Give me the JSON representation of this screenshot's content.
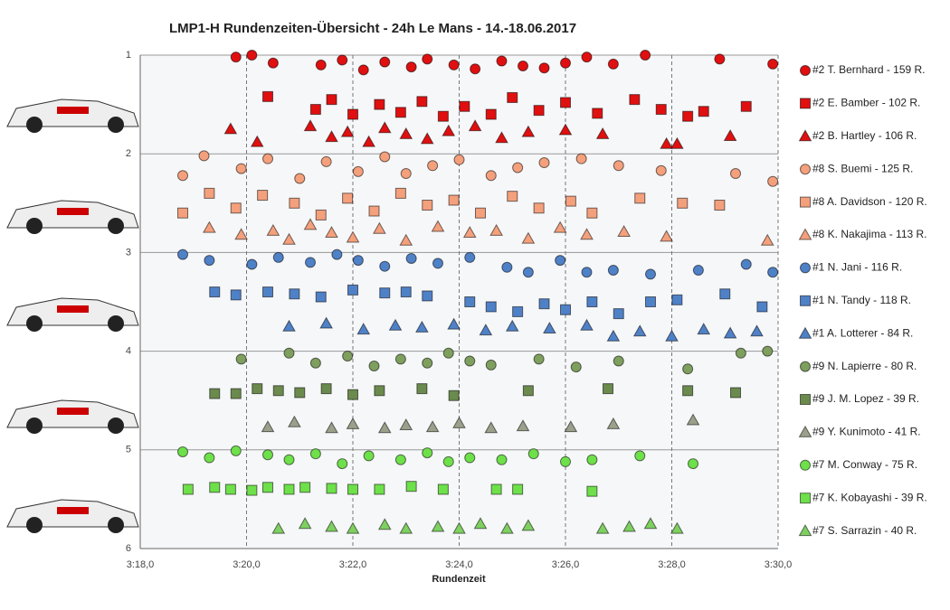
{
  "chart_data": {
    "type": "scatter",
    "title": "LMP1-H  Rundenzeiten-Übersicht  - 24h Le Mans  - 14.-18.06.2017",
    "x_label": "Rundenzeit",
    "xlim": [
      198,
      210
    ],
    "xticks": [
      {
        "value": 198,
        "label": "3:18,0"
      },
      {
        "value": 200,
        "label": "3:20,0"
      },
      {
        "value": 202,
        "label": "3:22,0"
      },
      {
        "value": 204,
        "label": "3:24,0"
      },
      {
        "value": 206,
        "label": "3:26,0"
      },
      {
        "value": 208,
        "label": "3:28,0"
      },
      {
        "value": 210,
        "label": "3:30,0"
      }
    ],
    "ylim": [
      6,
      1
    ],
    "yticks": [
      1,
      2,
      3,
      4,
      5,
      6
    ],
    "grid": true,
    "legend": "right",
    "series": [
      {
        "name": "#2 T. Bernhard - 159 R.",
        "color": "#e01010",
        "marker": "circle",
        "x": [
          199.8,
          200.1,
          200.5,
          201.4,
          201.8,
          202.2,
          202.6,
          203.1,
          203.4,
          203.9,
          204.3,
          204.8,
          205.2,
          205.6,
          206.0,
          206.4,
          206.9,
          207.5,
          208.9,
          209.9
        ],
        "values": [
          1.02,
          1.0,
          1.08,
          1.1,
          1.05,
          1.15,
          1.07,
          1.12,
          1.04,
          1.1,
          1.14,
          1.06,
          1.11,
          1.13,
          1.08,
          1.02,
          1.09,
          1.0,
          1.04,
          1.09
        ]
      },
      {
        "name": "#2 E. Bamber - 102 R.",
        "color": "#e01010",
        "marker": "square",
        "x": [
          200.4,
          201.3,
          201.6,
          202.0,
          202.5,
          202.9,
          203.3,
          203.7,
          204.1,
          204.6,
          205.0,
          205.5,
          206.0,
          206.6,
          207.3,
          207.8,
          208.3,
          208.6,
          209.4
        ],
        "values": [
          1.42,
          1.55,
          1.45,
          1.6,
          1.5,
          1.58,
          1.47,
          1.62,
          1.52,
          1.6,
          1.43,
          1.56,
          1.48,
          1.59,
          1.45,
          1.55,
          1.62,
          1.57,
          1.52
        ]
      },
      {
        "name": "#2 B. Hartley - 106 R.",
        "color": "#e01010",
        "marker": "triangle",
        "x": [
          199.7,
          200.2,
          201.2,
          201.6,
          201.9,
          202.3,
          202.6,
          203.0,
          203.4,
          203.8,
          204.3,
          204.8,
          205.3,
          206.0,
          206.7,
          207.9,
          208.1,
          209.1
        ],
        "values": [
          1.75,
          1.88,
          1.72,
          1.83,
          1.78,
          1.88,
          1.74,
          1.8,
          1.85,
          1.77,
          1.72,
          1.84,
          1.78,
          1.76,
          1.8,
          1.9,
          1.9,
          1.82
        ]
      },
      {
        "name": "#8 S. Buemi - 125 R.",
        "color": "#f4a07c",
        "marker": "circle",
        "x": [
          198.8,
          199.2,
          199.9,
          200.4,
          201.0,
          201.5,
          202.1,
          202.6,
          203.0,
          203.5,
          204.0,
          204.6,
          205.1,
          205.6,
          206.3,
          207.0,
          207.8,
          209.2,
          209.9
        ],
        "values": [
          2.22,
          2.02,
          2.15,
          2.05,
          2.25,
          2.08,
          2.18,
          2.03,
          2.2,
          2.12,
          2.06,
          2.22,
          2.14,
          2.09,
          2.05,
          2.12,
          2.17,
          2.2,
          2.28
        ]
      },
      {
        "name": "#8 A. Davidson - 120 R.",
        "color": "#f4a07c",
        "marker": "square",
        "x": [
          198.8,
          199.3,
          199.8,
          200.3,
          200.9,
          201.4,
          201.9,
          202.4,
          202.9,
          203.4,
          203.9,
          204.4,
          205.0,
          205.5,
          206.1,
          206.5,
          207.4,
          208.2,
          208.9
        ],
        "values": [
          2.6,
          2.4,
          2.55,
          2.42,
          2.5,
          2.62,
          2.45,
          2.58,
          2.4,
          2.52,
          2.47,
          2.6,
          2.43,
          2.55,
          2.48,
          2.6,
          2.45,
          2.5,
          2.52
        ]
      },
      {
        "name": "#8 K. Nakajima - 113 R.",
        "color": "#f4a07c",
        "marker": "triangle",
        "x": [
          199.3,
          199.9,
          200.5,
          200.8,
          201.2,
          201.6,
          202.0,
          202.5,
          203.0,
          203.6,
          204.2,
          204.7,
          205.3,
          205.9,
          206.4,
          207.1,
          207.9,
          209.8
        ],
        "values": [
          2.75,
          2.82,
          2.78,
          2.87,
          2.72,
          2.8,
          2.85,
          2.76,
          2.88,
          2.74,
          2.8,
          2.78,
          2.86,
          2.75,
          2.82,
          2.79,
          2.84,
          2.88
        ]
      },
      {
        "name": "#1 N. Jani - 116 R.",
        "color": "#4f81c7",
        "marker": "circle",
        "x": [
          198.8,
          199.3,
          200.1,
          200.6,
          201.2,
          201.7,
          202.1,
          202.6,
          203.1,
          203.6,
          204.2,
          204.9,
          205.3,
          205.9,
          206.4,
          206.9,
          207.6,
          208.5,
          209.4,
          209.9
        ],
        "values": [
          3.02,
          3.08,
          3.12,
          3.05,
          3.1,
          3.02,
          3.08,
          3.14,
          3.06,
          3.11,
          3.05,
          3.15,
          3.2,
          3.08,
          3.2,
          3.18,
          3.22,
          3.18,
          3.12,
          3.2
        ]
      },
      {
        "name": "#1 N. Tandy - 118 R.",
        "color": "#4f81c7",
        "marker": "square",
        "x": [
          199.4,
          199.8,
          200.4,
          200.9,
          201.4,
          202.0,
          202.6,
          203.0,
          203.4,
          204.2,
          204.6,
          205.1,
          205.6,
          206.0,
          206.5,
          207.0,
          207.6,
          208.1,
          209.0,
          209.7
        ],
        "values": [
          3.4,
          3.43,
          3.4,
          3.42,
          3.45,
          3.38,
          3.41,
          3.4,
          3.44,
          3.5,
          3.55,
          3.6,
          3.52,
          3.58,
          3.5,
          3.62,
          3.5,
          3.48,
          3.42,
          3.55
        ]
      },
      {
        "name": "#1 A. Lotterer - 84 R.",
        "color": "#4f81c7",
        "marker": "triangle",
        "x": [
          200.8,
          201.5,
          202.2,
          202.8,
          203.3,
          203.9,
          204.5,
          205.0,
          205.7,
          206.4,
          206.9,
          207.4,
          208.0,
          208.6,
          209.1,
          209.6
        ],
        "values": [
          3.75,
          3.72,
          3.78,
          3.74,
          3.76,
          3.73,
          3.79,
          3.75,
          3.77,
          3.74,
          3.85,
          3.8,
          3.85,
          3.78,
          3.82,
          3.8
        ]
      },
      {
        "name": "#9 N. Lapierre - 80 R.",
        "color": "#7f9f5e",
        "marker": "circle",
        "x": [
          199.9,
          200.8,
          201.3,
          201.9,
          202.4,
          202.9,
          203.4,
          203.8,
          204.2,
          204.6,
          205.5,
          206.2,
          207.0,
          208.3,
          209.3,
          209.8
        ],
        "values": [
          4.08,
          4.02,
          4.12,
          4.05,
          4.15,
          4.08,
          4.12,
          4.02,
          4.1,
          4.14,
          4.08,
          4.16,
          4.1,
          4.18,
          4.02,
          4.0
        ]
      },
      {
        "name": "#9 J. M. Lopez - 39 R.",
        "color": "#6b8a4d",
        "marker": "square",
        "x": [
          199.4,
          199.8,
          200.2,
          200.6,
          201.0,
          201.5,
          202.0,
          202.5,
          203.3,
          203.9,
          205.3,
          206.8,
          208.3,
          209.2
        ],
        "values": [
          4.43,
          4.43,
          4.38,
          4.4,
          4.42,
          4.38,
          4.44,
          4.4,
          4.38,
          4.45,
          4.4,
          4.38,
          4.4,
          4.42
        ]
      },
      {
        "name": "#9 Y. Kunimoto - 41 R.",
        "color": "#9aa08a",
        "marker": "triangle",
        "x": [
          200.4,
          200.9,
          201.6,
          202.0,
          202.6,
          203.0,
          203.5,
          204.0,
          204.6,
          205.2,
          206.1,
          206.9,
          208.4
        ],
        "values": [
          4.77,
          4.72,
          4.78,
          4.74,
          4.78,
          4.75,
          4.77,
          4.73,
          4.78,
          4.76,
          4.77,
          4.74,
          4.7
        ]
      },
      {
        "name": "#7 M. Conway - 75 R.",
        "color": "#6ee04a",
        "marker": "circle",
        "x": [
          198.8,
          199.3,
          199.8,
          200.4,
          200.8,
          201.3,
          201.8,
          202.3,
          202.9,
          203.4,
          203.8,
          204.2,
          204.8,
          205.4,
          206.0,
          206.5,
          207.4,
          208.4
        ],
        "values": [
          5.02,
          5.08,
          5.01,
          5.05,
          5.1,
          5.04,
          5.14,
          5.06,
          5.1,
          5.03,
          5.12,
          5.08,
          5.1,
          5.04,
          5.12,
          5.1,
          5.06,
          5.14
        ]
      },
      {
        "name": "#7 K. Kobayashi - 39 R.",
        "color": "#6ee04a",
        "marker": "square",
        "x": [
          198.9,
          199.4,
          199.7,
          200.1,
          200.4,
          200.8,
          201.1,
          201.6,
          202.0,
          202.5,
          203.1,
          203.7,
          204.7,
          205.1,
          206.5
        ],
        "values": [
          5.4,
          5.38,
          5.4,
          5.41,
          5.38,
          5.4,
          5.38,
          5.39,
          5.4,
          5.4,
          5.37,
          5.4,
          5.4,
          5.4,
          5.42
        ]
      },
      {
        "name": "#7 S. Sarrazin - 40 R.",
        "color": "#7ed060",
        "marker": "triangle",
        "x": [
          200.6,
          201.1,
          201.6,
          202.0,
          202.6,
          203.0,
          203.6,
          204.0,
          204.4,
          204.9,
          205.3,
          206.7,
          207.2,
          207.6,
          208.1
        ],
        "values": [
          5.8,
          5.75,
          5.78,
          5.8,
          5.76,
          5.8,
          5.78,
          5.8,
          5.75,
          5.8,
          5.77,
          5.8,
          5.78,
          5.75,
          5.8
        ]
      }
    ]
  }
}
